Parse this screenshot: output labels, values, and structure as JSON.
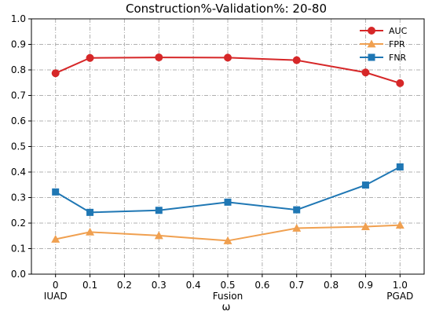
{
  "chart_data": {
    "type": "line",
    "title": "Construction%-Validation%: 20-80",
    "xlabel": "ω",
    "ylabel": "",
    "xlim": [
      -0.07,
      1.07
    ],
    "ylim": [
      0.0,
      1.0
    ],
    "x": [
      0.0,
      0.1,
      0.3,
      0.5,
      0.7,
      0.9,
      1.0
    ],
    "x_ticks": [
      0.0,
      0.1,
      0.2,
      0.3,
      0.4,
      0.5,
      0.6,
      0.7,
      0.8,
      0.9,
      1.0
    ],
    "x_tick_labels": [
      "0",
      "0.1",
      "0.2",
      "0.3",
      "0.4",
      "0.5",
      "0.6",
      "0.7",
      "0.8",
      "0.9",
      "1.0"
    ],
    "x_annotations": [
      {
        "x": 0.0,
        "text": "IUAD"
      },
      {
        "x": 0.5,
        "text": "Fusion"
      },
      {
        "x": 1.0,
        "text": "PGAD"
      }
    ],
    "y_ticks": [
      0.0,
      0.1,
      0.2,
      0.3,
      0.4,
      0.5,
      0.6,
      0.7,
      0.8,
      0.9,
      1.0
    ],
    "y_tick_labels": [
      "0.0",
      "0.1",
      "0.2",
      "0.3",
      "0.4",
      "0.5",
      "0.6",
      "0.7",
      "0.8",
      "0.9",
      "1.0"
    ],
    "grid": true,
    "legend_position": "top-right",
    "series": [
      {
        "name": "AUC",
        "color": "#d62728",
        "marker": "circle",
        "values": [
          0.787,
          0.847,
          0.849,
          0.848,
          0.838,
          0.79,
          0.748
        ]
      },
      {
        "name": "FPR",
        "color": "#f0a050",
        "marker": "triangle",
        "values": [
          0.137,
          0.165,
          0.151,
          0.131,
          0.18,
          0.186,
          0.192
        ]
      },
      {
        "name": "FNR",
        "color": "#1f77b4",
        "marker": "square",
        "values": [
          0.322,
          0.242,
          0.25,
          0.282,
          0.252,
          0.349,
          0.42
        ]
      }
    ]
  }
}
